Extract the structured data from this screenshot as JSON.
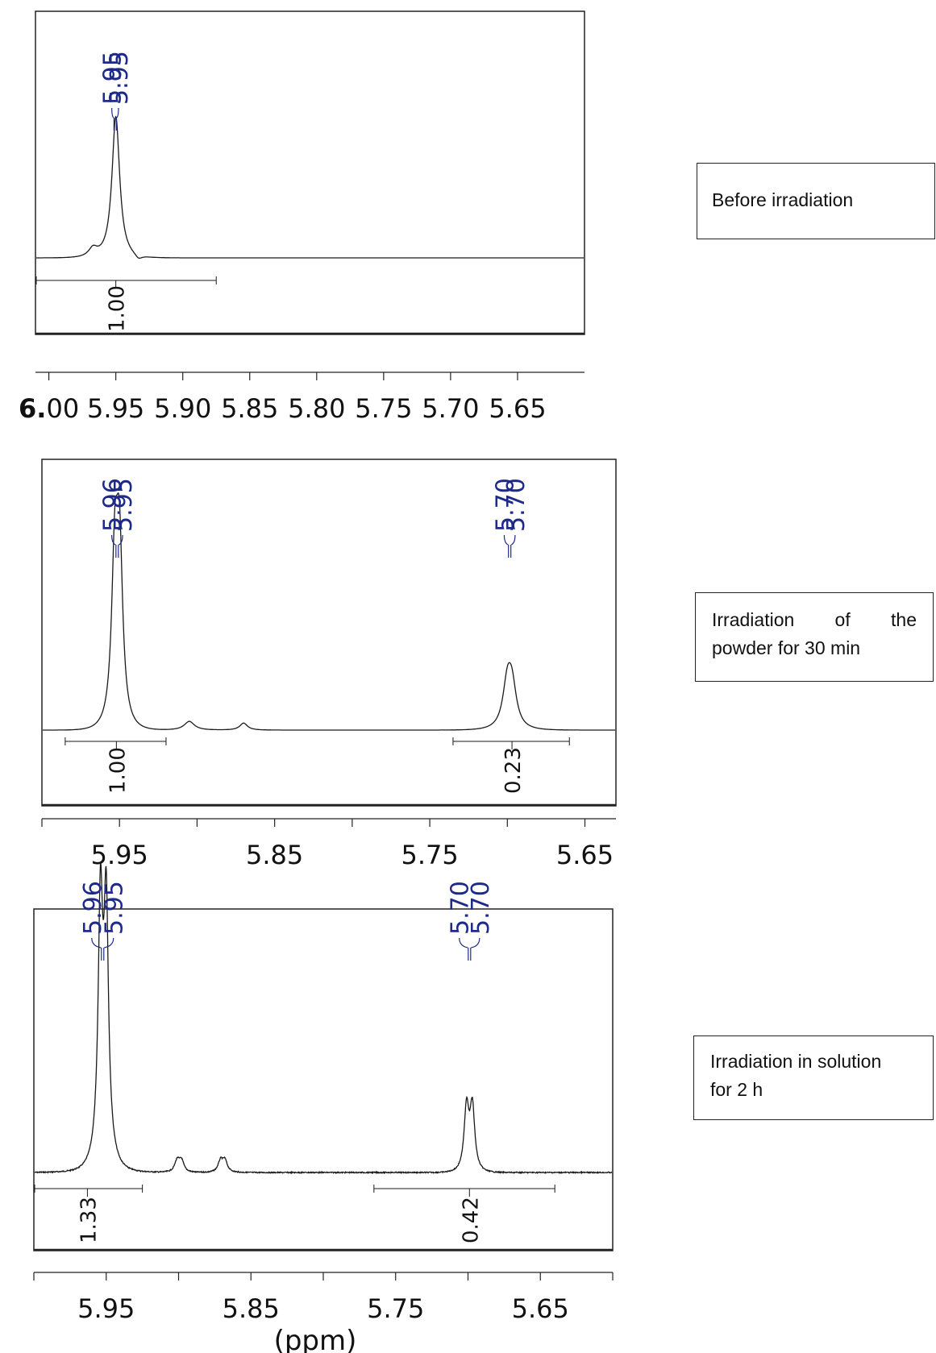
{
  "panels": [
    {
      "caption": [
        "Before irradiation"
      ],
      "chart_data": {
        "type": "line",
        "x_axis": {
          "range": [
            6.01,
            5.6
          ],
          "ticks": [
            6.0,
            5.95,
            5.9,
            5.85,
            5.8,
            5.75,
            5.7,
            5.65
          ],
          "tick_labels": [
            "6.00",
            "5.95",
            "5.90",
            "5.85",
            "5.80",
            "5.75",
            "5.70",
            "5.65"
          ]
        },
        "peaks": [
          {
            "center": 5.95,
            "height": 1.0,
            "width": 0.0035
          }
        ],
        "baseline_bumps": [
          {
            "center": 5.967,
            "height": 0.06,
            "width": 0.004
          },
          {
            "center": 5.933,
            "height": -0.03,
            "width": 0.003
          }
        ],
        "peak_labels": [
          {
            "text": "5.95",
            "x": 5.953
          },
          {
            "text": "5.95",
            "x": 5.948
          }
        ],
        "integrals": [
          {
            "from": 6.01,
            "to": 5.875,
            "value": "1.00",
            "label_x": 5.95
          }
        ]
      }
    },
    {
      "caption": [
        "Irradiation of the",
        "powder for 30 min"
      ],
      "chart_data": {
        "type": "line",
        "x_axis": {
          "range": [
            6.0,
            5.63
          ],
          "ticks": [
            5.95,
            5.85,
            5.75,
            5.65
          ],
          "tick_labels": [
            "5.95",
            "5.85",
            "5.75",
            "5.65"
          ]
        },
        "peaks": [
          {
            "center": 5.953,
            "height": 0.9,
            "width": 0.0025
          },
          {
            "center": 5.95,
            "height": 0.95,
            "width": 0.0025
          },
          {
            "center": 5.7,
            "height": 0.24,
            "width": 0.0035
          },
          {
            "center": 5.697,
            "height": 0.22,
            "width": 0.0035
          },
          {
            "center": 5.905,
            "height": 0.05,
            "width": 0.004
          },
          {
            "center": 5.87,
            "height": 0.04,
            "width": 0.003
          }
        ],
        "peak_labels": [
          {
            "text": "5.96",
            "x": 5.955
          },
          {
            "text": "5.95",
            "x": 5.948
          },
          {
            "text": "5.70",
            "x": 5.702
          },
          {
            "text": "5.70",
            "x": 5.695
          }
        ],
        "integrals": [
          {
            "from": 5.985,
            "to": 5.92,
            "value": "1.00",
            "label_x": 5.952
          },
          {
            "from": 5.735,
            "to": 5.66,
            "value": "0.23",
            "label_x": 5.697
          }
        ]
      }
    },
    {
      "caption": [
        "Irradiation in solution",
        "for 2 h"
      ],
      "chart_data": {
        "type": "line",
        "x_axis": {
          "range": [
            6.0,
            5.6
          ],
          "ticks": [
            5.95,
            5.85,
            5.75,
            5.65
          ],
          "tick_labels": [
            "5.95",
            "5.85",
            "5.75",
            "5.65"
          ]
        },
        "axis_title": "(ppm)",
        "peaks": [
          {
            "center": 5.954,
            "height": 1.0,
            "width": 0.0018
          },
          {
            "center": 5.95,
            "height": 0.98,
            "width": 0.0018
          },
          {
            "center": 5.952,
            "height": 0.25,
            "width": 0.005
          },
          {
            "center": 5.701,
            "height": 0.28,
            "width": 0.002
          },
          {
            "center": 5.697,
            "height": 0.28,
            "width": 0.002
          },
          {
            "center": 5.901,
            "height": 0.05,
            "width": 0.002
          },
          {
            "center": 5.898,
            "height": 0.05,
            "width": 0.002
          },
          {
            "center": 5.871,
            "height": 0.05,
            "width": 0.002
          },
          {
            "center": 5.868,
            "height": 0.05,
            "width": 0.002
          }
        ],
        "peak_labels": [
          {
            "text": "5.96",
            "x": 5.96
          },
          {
            "text": "5.95",
            "x": 5.945
          },
          {
            "text": "5.70",
            "x": 5.706
          },
          {
            "text": "5.70",
            "x": 5.692
          }
        ],
        "integrals": [
          {
            "from": 6.0,
            "to": 5.925,
            "value": "1.33",
            "label_x": 5.963
          },
          {
            "from": 5.765,
            "to": 5.64,
            "value": "0.42",
            "label_x": 5.699
          }
        ]
      }
    }
  ],
  "colors": {
    "spectrum": "#1a1a1a",
    "peak_label": "#1e2a8a",
    "frame": "#222222"
  }
}
